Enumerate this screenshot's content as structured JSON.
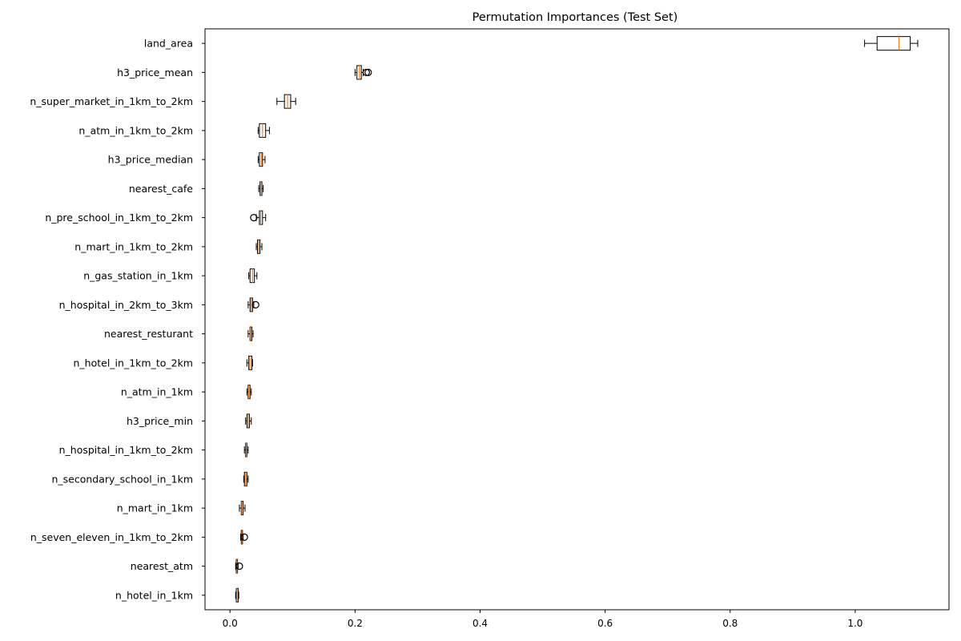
{
  "chart_data": {
    "type": "boxplot",
    "orientation": "horizontal",
    "title": "Permutation Importances (Test Set)",
    "xlabel": "",
    "ylabel": "",
    "xlim": [
      -0.04,
      1.15
    ],
    "xticks": [
      0.0,
      0.2,
      0.4,
      0.6,
      0.8,
      1.0
    ],
    "xtick_labels": [
      "0.0",
      "0.2",
      "0.4",
      "0.6",
      "0.8",
      "1.0"
    ],
    "grid": false,
    "box_color": "#000000",
    "box_fill": "#ffffff",
    "median_color": "#ff7f0e",
    "features": [
      {
        "name": "land_area",
        "whislo": 1.015,
        "q1": 1.035,
        "med": 1.07,
        "q3": 1.088,
        "whishi": 1.1,
        "fliers": []
      },
      {
        "name": "h3_price_mean",
        "whislo": 0.2,
        "q1": 0.203,
        "med": 0.207,
        "q3": 0.21,
        "whishi": 0.213,
        "fliers": [
          0.218,
          0.221
        ]
      },
      {
        "name": "n_super_market_in_1km_to_2km",
        "whislo": 0.075,
        "q1": 0.087,
        "med": 0.092,
        "q3": 0.097,
        "whishi": 0.105,
        "fliers": []
      },
      {
        "name": "n_atm_in_1km_to_2km",
        "whislo": 0.045,
        "q1": 0.047,
        "med": 0.052,
        "q3": 0.057,
        "whishi": 0.063,
        "fliers": []
      },
      {
        "name": "h3_price_median",
        "whislo": 0.045,
        "q1": 0.047,
        "med": 0.05,
        "q3": 0.052,
        "whishi": 0.056,
        "fliers": []
      },
      {
        "name": "nearest_cafe",
        "whislo": 0.046,
        "q1": 0.048,
        "med": 0.049,
        "q3": 0.051,
        "whishi": 0.053,
        "fliers": []
      },
      {
        "name": "n_pre_school_in_1km_to_2km",
        "whislo": 0.042,
        "q1": 0.047,
        "med": 0.049,
        "q3": 0.052,
        "whishi": 0.057,
        "fliers": [
          0.038
        ]
      },
      {
        "name": "n_mart_in_1km_to_2km",
        "whislo": 0.042,
        "q1": 0.044,
        "med": 0.046,
        "q3": 0.048,
        "whishi": 0.051,
        "fliers": []
      },
      {
        "name": "n_gas_station_in_1km",
        "whislo": 0.03,
        "q1": 0.032,
        "med": 0.036,
        "q3": 0.039,
        "whishi": 0.043,
        "fliers": []
      },
      {
        "name": "n_hospital_in_2km_to_3km",
        "whislo": 0.029,
        "q1": 0.032,
        "med": 0.034,
        "q3": 0.036,
        "whishi": 0.038,
        "fliers": [
          0.041
        ]
      },
      {
        "name": "nearest_resturant",
        "whislo": 0.029,
        "q1": 0.032,
        "med": 0.033,
        "q3": 0.035,
        "whishi": 0.037,
        "fliers": []
      },
      {
        "name": "n_hotel_in_1km_to_2km",
        "whislo": 0.027,
        "q1": 0.03,
        "med": 0.032,
        "q3": 0.035,
        "whishi": 0.036,
        "fliers": []
      },
      {
        "name": "n_atm_in_1km",
        "whislo": 0.027,
        "q1": 0.029,
        "med": 0.03,
        "q3": 0.032,
        "whishi": 0.034,
        "fliers": []
      },
      {
        "name": "h3_price_min",
        "whislo": 0.025,
        "q1": 0.027,
        "med": 0.029,
        "q3": 0.031,
        "whishi": 0.034,
        "fliers": []
      },
      {
        "name": "n_hospital_in_1km_to_2km",
        "whislo": 0.023,
        "q1": 0.025,
        "med": 0.026,
        "q3": 0.027,
        "whishi": 0.029,
        "fliers": []
      },
      {
        "name": "n_secondary_school_in_1km",
        "whislo": 0.022,
        "q1": 0.023,
        "med": 0.025,
        "q3": 0.027,
        "whishi": 0.029,
        "fliers": []
      },
      {
        "name": "n_mart_in_1km",
        "whislo": 0.015,
        "q1": 0.018,
        "med": 0.019,
        "q3": 0.021,
        "whishi": 0.024,
        "fliers": []
      },
      {
        "name": "n_seven_eleven_in_1km_to_2km",
        "whislo": 0.017,
        "q1": 0.018,
        "med": 0.019,
        "q3": 0.02,
        "whishi": 0.021,
        "fliers": [
          0.023
        ]
      },
      {
        "name": "nearest_atm",
        "whislo": 0.009,
        "q1": 0.01,
        "med": 0.011,
        "q3": 0.012,
        "whishi": 0.013,
        "fliers": [
          0.015
        ]
      },
      {
        "name": "n_hotel_in_1km",
        "whislo": 0.009,
        "q1": 0.01,
        "med": 0.011,
        "q3": 0.013,
        "whishi": 0.014,
        "fliers": []
      }
    ]
  }
}
